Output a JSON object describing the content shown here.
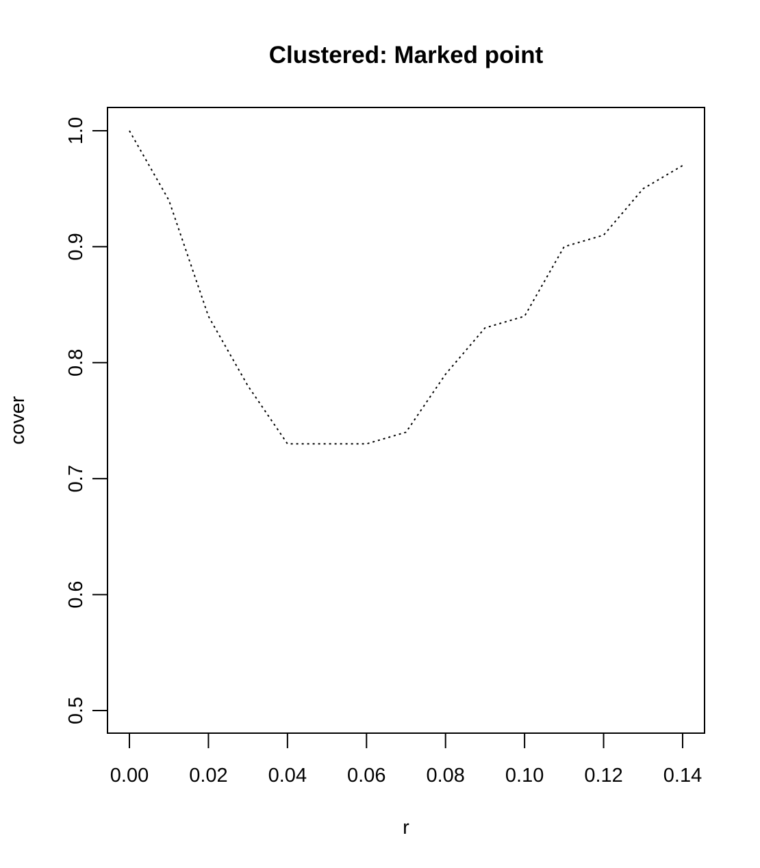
{
  "chart_data": {
    "type": "line",
    "title": "Clustered: Marked point",
    "xlabel": "r",
    "ylabel": "cover",
    "xlim": [
      0,
      0.14
    ],
    "ylim": [
      0.5,
      1.0
    ],
    "x_ticks": [
      "0.00",
      "0.02",
      "0.04",
      "0.06",
      "0.08",
      "0.10",
      "0.12",
      "0.14"
    ],
    "y_ticks": [
      "0.5",
      "0.6",
      "0.7",
      "0.8",
      "0.9",
      "1.0"
    ],
    "line_style": "dotted",
    "line_color": "#000000",
    "grid": false,
    "legend": "none",
    "series": [
      {
        "x": [
          0.0,
          0.01,
          0.02,
          0.03,
          0.04,
          0.05,
          0.06,
          0.07,
          0.08,
          0.09,
          0.1,
          0.11,
          0.12,
          0.13,
          0.14
        ],
        "values": [
          1.0,
          0.94,
          0.84,
          0.78,
          0.73,
          0.73,
          0.73,
          0.74,
          0.79,
          0.83,
          0.84,
          0.9,
          0.91,
          0.95,
          0.97
        ]
      }
    ]
  }
}
